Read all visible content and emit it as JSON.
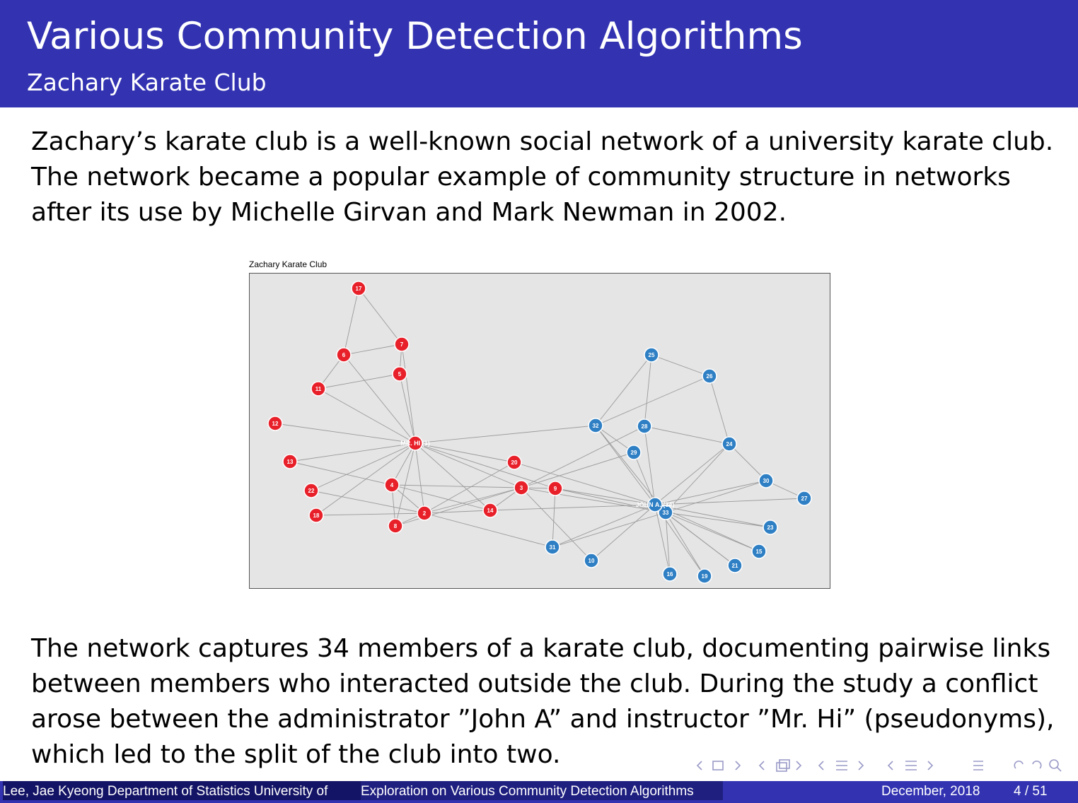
{
  "slide": {
    "title": "Various Community Detection Algorithms",
    "subtitle": "Zachary Karate Club",
    "paragraph1": "Zachary’s karate club is a well-known social network of a university karate club. The network became a popular example of community structure in networks after its use by Michelle Girvan and Mark Newman in 2002.",
    "paragraph2": "The network captures 34 members of a karate club, documenting pairwise links between members who interacted outside the club. During the study a conflict arose between the administrator ”John A” and instructor ”Mr. Hi” (pseudonyms), which led to the split of the club into two."
  },
  "figure": {
    "title": "Zachary Karate Club",
    "colors": {
      "red": "#e8202a",
      "blue": "#2e7fc4",
      "edge": "#9a9a9a",
      "background": "#e5e5e5"
    },
    "nodes": [
      {
        "id": "1",
        "label": "MR. HI (1)",
        "group": "red"
      },
      {
        "id": "2",
        "label": "2",
        "group": "red"
      },
      {
        "id": "3",
        "label": "3",
        "group": "red"
      },
      {
        "id": "4",
        "label": "4",
        "group": "red"
      },
      {
        "id": "5",
        "label": "5",
        "group": "red"
      },
      {
        "id": "6",
        "label": "6",
        "group": "red"
      },
      {
        "id": "7",
        "label": "7",
        "group": "red"
      },
      {
        "id": "8",
        "label": "8",
        "group": "red"
      },
      {
        "id": "9",
        "label": "9",
        "group": "red"
      },
      {
        "id": "10",
        "label": "10",
        "group": "blue"
      },
      {
        "id": "11",
        "label": "11",
        "group": "red"
      },
      {
        "id": "12",
        "label": "12",
        "group": "red"
      },
      {
        "id": "13",
        "label": "13",
        "group": "red"
      },
      {
        "id": "14",
        "label": "14",
        "group": "red"
      },
      {
        "id": "15",
        "label": "15",
        "group": "blue"
      },
      {
        "id": "16",
        "label": "16",
        "group": "blue"
      },
      {
        "id": "17",
        "label": "17",
        "group": "red"
      },
      {
        "id": "18",
        "label": "18",
        "group": "red"
      },
      {
        "id": "19",
        "label": "19",
        "group": "blue"
      },
      {
        "id": "20",
        "label": "20",
        "group": "red"
      },
      {
        "id": "21",
        "label": "21",
        "group": "blue"
      },
      {
        "id": "22",
        "label": "22",
        "group": "red"
      },
      {
        "id": "23",
        "label": "23",
        "group": "blue"
      },
      {
        "id": "24",
        "label": "24",
        "group": "blue"
      },
      {
        "id": "25",
        "label": "25",
        "group": "blue"
      },
      {
        "id": "26",
        "label": "26",
        "group": "blue"
      },
      {
        "id": "27",
        "label": "27",
        "group": "blue"
      },
      {
        "id": "28",
        "label": "28",
        "group": "blue"
      },
      {
        "id": "29",
        "label": "29",
        "group": "blue"
      },
      {
        "id": "30",
        "label": "30",
        "group": "blue"
      },
      {
        "id": "31",
        "label": "31",
        "group": "blue"
      },
      {
        "id": "32",
        "label": "32",
        "group": "blue"
      },
      {
        "id": "33",
        "label": "33",
        "group": "blue"
      },
      {
        "id": "34",
        "label": "JOHN A. (34)",
        "group": "blue"
      }
    ],
    "edges": [
      [
        "1",
        "2"
      ],
      [
        "1",
        "3"
      ],
      [
        "1",
        "4"
      ],
      [
        "1",
        "5"
      ],
      [
        "1",
        "6"
      ],
      [
        "1",
        "7"
      ],
      [
        "1",
        "8"
      ],
      [
        "1",
        "9"
      ],
      [
        "1",
        "11"
      ],
      [
        "1",
        "12"
      ],
      [
        "1",
        "13"
      ],
      [
        "1",
        "14"
      ],
      [
        "1",
        "18"
      ],
      [
        "1",
        "20"
      ],
      [
        "1",
        "22"
      ],
      [
        "1",
        "32"
      ],
      [
        "2",
        "3"
      ],
      [
        "2",
        "4"
      ],
      [
        "2",
        "8"
      ],
      [
        "2",
        "14"
      ],
      [
        "2",
        "18"
      ],
      [
        "2",
        "20"
      ],
      [
        "2",
        "22"
      ],
      [
        "2",
        "31"
      ],
      [
        "3",
        "4"
      ],
      [
        "3",
        "8"
      ],
      [
        "3",
        "9"
      ],
      [
        "3",
        "10"
      ],
      [
        "3",
        "14"
      ],
      [
        "3",
        "28"
      ],
      [
        "3",
        "29"
      ],
      [
        "3",
        "33"
      ],
      [
        "4",
        "8"
      ],
      [
        "4",
        "13"
      ],
      [
        "4",
        "14"
      ],
      [
        "5",
        "7"
      ],
      [
        "5",
        "11"
      ],
      [
        "6",
        "7"
      ],
      [
        "6",
        "11"
      ],
      [
        "6",
        "17"
      ],
      [
        "7",
        "17"
      ],
      [
        "9",
        "31"
      ],
      [
        "9",
        "33"
      ],
      [
        "9",
        "34"
      ],
      [
        "10",
        "34"
      ],
      [
        "14",
        "34"
      ],
      [
        "15",
        "33"
      ],
      [
        "15",
        "34"
      ],
      [
        "16",
        "33"
      ],
      [
        "16",
        "34"
      ],
      [
        "19",
        "33"
      ],
      [
        "19",
        "34"
      ],
      [
        "20",
        "34"
      ],
      [
        "21",
        "33"
      ],
      [
        "21",
        "34"
      ],
      [
        "23",
        "33"
      ],
      [
        "23",
        "34"
      ],
      [
        "24",
        "26"
      ],
      [
        "24",
        "28"
      ],
      [
        "24",
        "30"
      ],
      [
        "24",
        "33"
      ],
      [
        "24",
        "34"
      ],
      [
        "25",
        "26"
      ],
      [
        "25",
        "28"
      ],
      [
        "25",
        "32"
      ],
      [
        "26",
        "32"
      ],
      [
        "27",
        "30"
      ],
      [
        "27",
        "34"
      ],
      [
        "28",
        "34"
      ],
      [
        "29",
        "32"
      ],
      [
        "29",
        "34"
      ],
      [
        "30",
        "33"
      ],
      [
        "30",
        "34"
      ],
      [
        "31",
        "33"
      ],
      [
        "31",
        "34"
      ],
      [
        "32",
        "33"
      ],
      [
        "32",
        "34"
      ],
      [
        "33",
        "34"
      ]
    ]
  },
  "footer": {
    "author": "Lee, Jae Kyeong Department of Statistics University of",
    "talk": "Exploration on Various Community Detection Algorithms",
    "date": "December, 2018",
    "page": "4 / 51"
  }
}
